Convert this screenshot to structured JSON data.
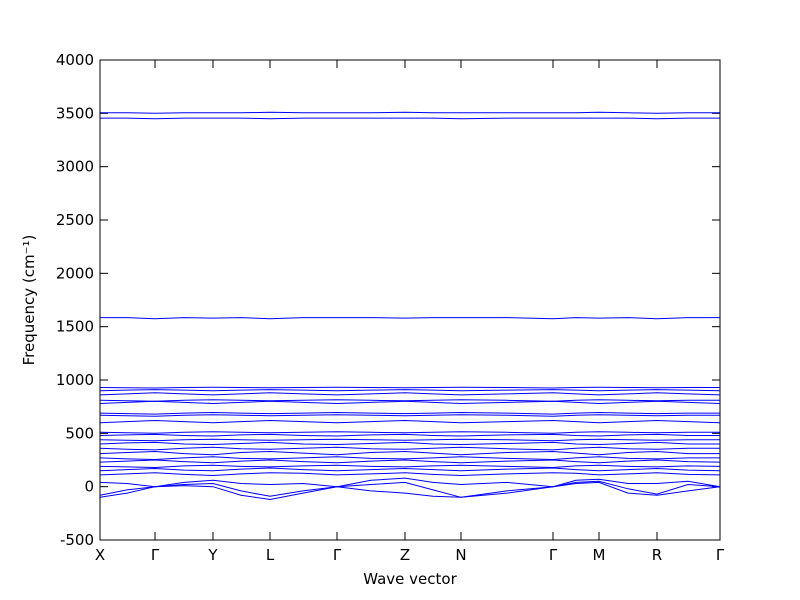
{
  "chart_data": {
    "type": "line",
    "xlabel": "Wave vector",
    "ylabel": "Frequency (cm⁻¹)",
    "color": "#0000ff",
    "xlim": [
      0,
      620
    ],
    "ylim": [
      -500,
      4000
    ],
    "yticks": [
      -500,
      0,
      500,
      1000,
      1500,
      2000,
      2500,
      3000,
      3500,
      4000
    ],
    "xticks": [
      {
        "value": 0,
        "label": "X"
      },
      {
        "value": 55,
        "label": "Γ"
      },
      {
        "value": 113,
        "label": "Y"
      },
      {
        "value": 170,
        "label": "L"
      },
      {
        "value": 237,
        "label": "Γ"
      },
      {
        "value": 305,
        "label": "Z"
      },
      {
        "value": 361,
        "label": "N"
      },
      {
        "value": 453,
        "label": "Γ"
      },
      {
        "value": 499,
        "label": "M"
      },
      {
        "value": 557,
        "label": "R"
      },
      {
        "value": 620,
        "label": "Γ"
      }
    ],
    "x": [
      0,
      27,
      55,
      84,
      113,
      141,
      170,
      203,
      237,
      271,
      305,
      333,
      361,
      407,
      453,
      476,
      499,
      528,
      557,
      588,
      620
    ],
    "series": [
      {
        "values": [
          -100,
          -60,
          0,
          10,
          0,
          -80,
          -120,
          -60,
          0,
          -40,
          -60,
          -90,
          -100,
          -60,
          0,
          30,
          40,
          -60,
          -80,
          -40,
          0
        ]
      },
      {
        "values": [
          -80,
          -30,
          0,
          20,
          30,
          -40,
          -90,
          -40,
          0,
          20,
          40,
          -30,
          -100,
          -40,
          0,
          40,
          50,
          -20,
          -70,
          20,
          0
        ]
      },
      {
        "values": [
          40,
          30,
          0,
          40,
          60,
          30,
          20,
          30,
          0,
          60,
          80,
          40,
          20,
          40,
          0,
          60,
          70,
          30,
          30,
          50,
          0
        ]
      },
      {
        "values": [
          110,
          120,
          130,
          115,
          105,
          120,
          130,
          125,
          110,
          120,
          130,
          115,
          105,
          120,
          130,
          125,
          110,
          120,
          130,
          115,
          110
        ]
      },
      {
        "values": [
          150,
          160,
          170,
          155,
          150,
          165,
          175,
          160,
          150,
          160,
          170,
          160,
          150,
          165,
          175,
          160,
          150,
          160,
          170,
          155,
          150
        ]
      },
      {
        "values": [
          190,
          185,
          180,
          195,
          200,
          190,
          185,
          195,
          200,
          190,
          185,
          195,
          200,
          190,
          180,
          195,
          200,
          190,
          185,
          195,
          190
        ]
      },
      {
        "values": [
          230,
          240,
          250,
          235,
          225,
          240,
          250,
          235,
          225,
          240,
          250,
          235,
          225,
          240,
          250,
          235,
          225,
          240,
          250,
          235,
          230
        ]
      },
      {
        "values": [
          270,
          260,
          255,
          270,
          280,
          265,
          260,
          270,
          280,
          265,
          260,
          270,
          280,
          265,
          255,
          270,
          280,
          265,
          260,
          270,
          270
        ]
      },
      {
        "values": [
          310,
          320,
          330,
          310,
          300,
          320,
          330,
          315,
          300,
          320,
          330,
          315,
          300,
          320,
          330,
          315,
          300,
          320,
          330,
          310,
          310
        ]
      },
      {
        "values": [
          360,
          350,
          345,
          360,
          370,
          355,
          350,
          360,
          370,
          355,
          350,
          360,
          370,
          355,
          345,
          360,
          370,
          355,
          350,
          360,
          360
        ]
      },
      {
        "values": [
          400,
          410,
          415,
          400,
          395,
          405,
          415,
          400,
          395,
          405,
          415,
          400,
          395,
          405,
          415,
          400,
          395,
          405,
          415,
          400,
          400
        ]
      },
      {
        "values": [
          440,
          435,
          430,
          440,
          445,
          440,
          435,
          440,
          445,
          440,
          435,
          440,
          445,
          440,
          430,
          440,
          445,
          440,
          435,
          440,
          440
        ]
      },
      {
        "values": [
          480,
          485,
          490,
          480,
          475,
          485,
          490,
          480,
          475,
          485,
          490,
          480,
          475,
          485,
          490,
          480,
          475,
          485,
          490,
          480,
          480
        ]
      },
      {
        "values": [
          510,
          505,
          500,
          510,
          515,
          510,
          505,
          510,
          515,
          510,
          505,
          510,
          515,
          510,
          500,
          510,
          515,
          510,
          505,
          510,
          510
        ]
      },
      {
        "values": [
          600,
          610,
          620,
          610,
          600,
          610,
          620,
          610,
          600,
          610,
          620,
          610,
          600,
          610,
          620,
          610,
          600,
          610,
          620,
          610,
          600
        ]
      },
      {
        "values": [
          670,
          665,
          660,
          670,
          675,
          670,
          665,
          670,
          675,
          670,
          665,
          670,
          675,
          670,
          660,
          670,
          675,
          670,
          665,
          670,
          670
        ]
      },
      {
        "values": [
          690,
          685,
          680,
          690,
          695,
          690,
          685,
          690,
          695,
          690,
          685,
          690,
          695,
          690,
          680,
          690,
          695,
          690,
          685,
          690,
          690
        ]
      },
      {
        "values": [
          780,
          790,
          800,
          790,
          780,
          790,
          800,
          790,
          780,
          790,
          800,
          790,
          780,
          790,
          800,
          790,
          780,
          790,
          800,
          790,
          780
        ]
      },
      {
        "values": [
          810,
          805,
          800,
          810,
          815,
          810,
          805,
          810,
          815,
          810,
          805,
          810,
          815,
          810,
          800,
          810,
          815,
          810,
          805,
          810,
          810
        ]
      },
      {
        "values": [
          860,
          870,
          880,
          870,
          860,
          870,
          880,
          870,
          860,
          870,
          880,
          870,
          860,
          870,
          880,
          870,
          860,
          870,
          880,
          870,
          860
        ]
      },
      {
        "values": [
          900,
          905,
          910,
          905,
          900,
          905,
          910,
          905,
          900,
          905,
          910,
          905,
          900,
          905,
          910,
          905,
          900,
          905,
          910,
          905,
          900
        ]
      },
      {
        "values": [
          930,
          928,
          925,
          930,
          932,
          930,
          928,
          930,
          932,
          930,
          928,
          930,
          932,
          930,
          925,
          930,
          932,
          930,
          928,
          930,
          930
        ]
      },
      {
        "values": [
          1585,
          1585,
          1575,
          1585,
          1580,
          1585,
          1575,
          1585,
          1585,
          1585,
          1580,
          1585,
          1585,
          1585,
          1575,
          1585,
          1580,
          1585,
          1575,
          1585,
          1585
        ]
      },
      {
        "values": [
          3455,
          3455,
          3450,
          3455,
          3455,
          3455,
          3450,
          3455,
          3455,
          3455,
          3455,
          3455,
          3450,
          3455,
          3455,
          3455,
          3455,
          3455,
          3450,
          3455,
          3455
        ]
      },
      {
        "values": [
          3505,
          3505,
          3500,
          3505,
          3505,
          3505,
          3510,
          3505,
          3505,
          3505,
          3510,
          3505,
          3505,
          3505,
          3505,
          3505,
          3510,
          3505,
          3500,
          3505,
          3505
        ]
      }
    ]
  }
}
